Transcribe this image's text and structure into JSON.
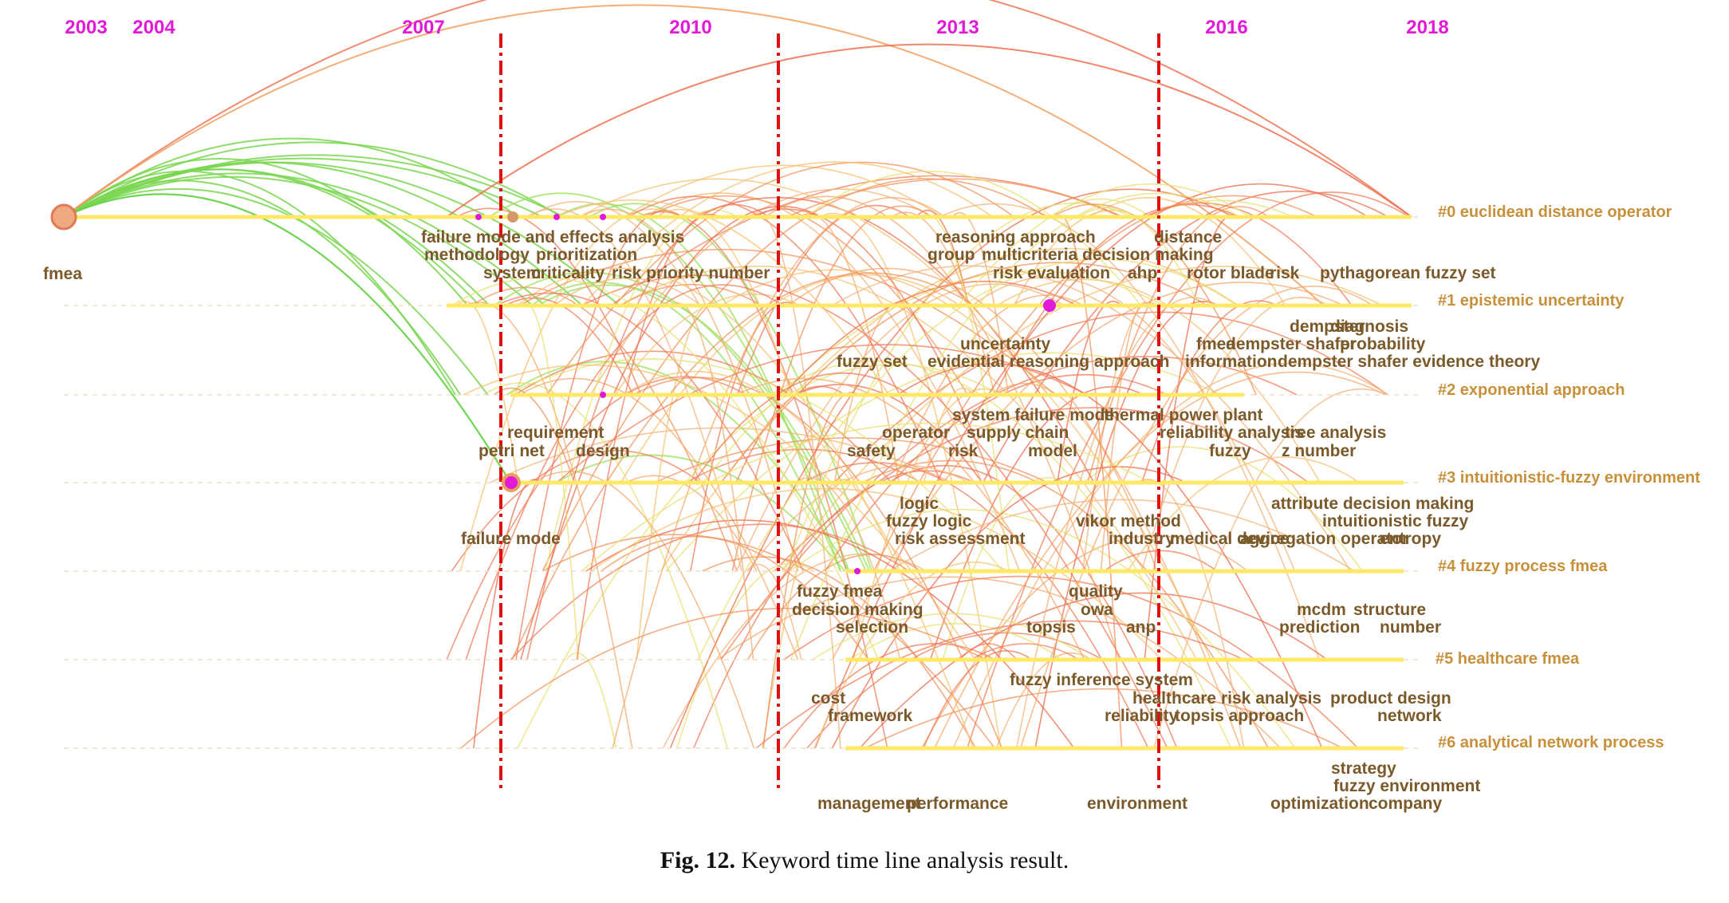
{
  "years": [
    "2003",
    "2004",
    "2007",
    "2010",
    "2013",
    "2016",
    "2018"
  ],
  "clusters": [
    "#0 euclidean distance operator",
    "#1 epistemic uncertainty",
    "#2 exponential approach",
    "#3 intuitionistic-fuzzy environment",
    "#4 fuzzy process fmea",
    "#5 healthcare fmea",
    "#6 analytical network process"
  ],
  "keywords": [
    "fmea",
    "failure mode and effects analysis",
    "methodology",
    "prioritization",
    "system",
    "criticality",
    "risk priority number",
    "reasoning approach",
    "distance",
    "group",
    "multicriteria decision making",
    "risk evaluation",
    "ahp",
    "rotor blade",
    "risk",
    "pythagorean fuzzy set",
    "dempster",
    "diagnosis",
    "fmea",
    "dempster shafer",
    "probability",
    "uncertainty",
    "fuzzy set",
    "evidential reasoning approach",
    "information",
    "dempster shafer evidence theory",
    "requirement",
    "petri net",
    "design",
    "system failure mode",
    "thermal power plant",
    "operator",
    "supply chain",
    "reliability analysis",
    "tree analysis",
    "safety",
    "risk",
    "model",
    "fuzzy",
    "z number",
    "failure mode",
    "logic",
    "fuzzy logic",
    "risk assessment",
    "vikor method",
    "industry",
    "medical device",
    "aggregation operator",
    "entropy",
    "attribute decision making",
    "intuitionistic fuzzy",
    "fuzzy fmea",
    "decision making",
    "selection",
    "quality",
    "owa",
    "topsis",
    "anp",
    "mcdm",
    "structure",
    "prediction",
    "number",
    "fuzzy inference system",
    "healthcare",
    "risk analysis",
    "product design",
    "cost",
    "framework",
    "reliability",
    "topsis approach",
    "network",
    "strategy",
    "fuzzy environment",
    "management",
    "performance",
    "environment",
    "optimization",
    "company"
  ],
  "caption": {
    "label": "Fig. 12.",
    "text": "Keyword time line analysis result."
  },
  "colors": {
    "year": "#e21ad8",
    "divider": "#e01010",
    "timeline": "#ffe866",
    "cluster_label": "#c8903a",
    "keyword": "#7a5a2a",
    "hub_node": "#e21ad8"
  }
}
